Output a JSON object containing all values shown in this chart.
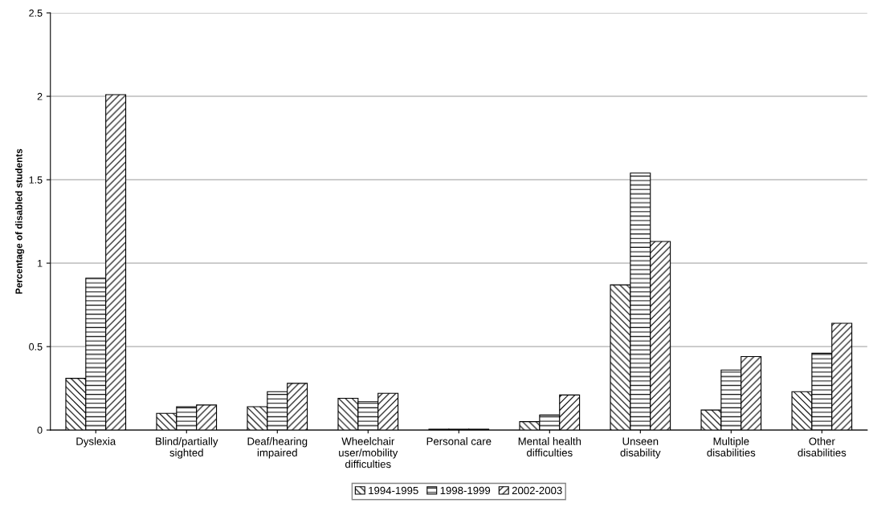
{
  "chart_data": {
    "type": "bar",
    "ylabel": "Percentage of disabled students",
    "categories": [
      "Dyslexia",
      "Blind/partially\nsighted",
      "Deaf/hearing\nimpaired",
      "Wheelchair\nuser/mobility\ndifficulties",
      "Personal care",
      "Mental health\ndifficulties",
      "Unseen\ndisability",
      "Multiple\ndisabilities",
      "Other\ndisabilities"
    ],
    "series": [
      {
        "name": "1994-1995",
        "color": "#000000",
        "values": [
          0.31,
          0.1,
          0.14,
          0.19,
          0.005,
          0.05,
          0.87,
          0.12,
          0.23
        ]
      },
      {
        "name": "1998-1999",
        "color": "#000000",
        "values": [
          0.91,
          0.14,
          0.23,
          0.17,
          0.005,
          0.09,
          1.54,
          0.36,
          0.46
        ]
      },
      {
        "name": "2002-2003",
        "color": "#000000",
        "values": [
          2.01,
          0.15,
          0.28,
          0.22,
          0.005,
          0.21,
          1.13,
          0.44,
          0.64
        ]
      }
    ],
    "ylim": [
      0,
      2.5
    ],
    "yticks": [
      0,
      0.5,
      1,
      1.5,
      2,
      2.5
    ],
    "grid": "y",
    "legend": "bottom"
  }
}
